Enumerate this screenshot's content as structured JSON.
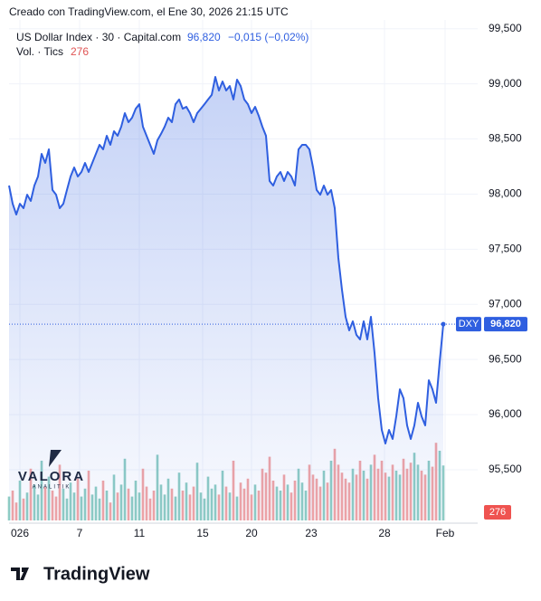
{
  "chart_data": {
    "type": "line",
    "caption": "Creado con TradingView.com, el Ene 30, 2026 21:15 UTC",
    "title": "US Dollar Index · 30 · Capital.com",
    "change_label": "−0,015 (−0,02%)",
    "volume_title": "Vol. · Tics",
    "symbol": "DXY",
    "watermark": "VALORA",
    "watermark_sub": "ANALITIK",
    "brand": "TradingView",
    "price_label": {
      "value": 96820,
      "label": "96,820"
    },
    "xlim": [
      0,
      121
    ],
    "xticks": [
      {
        "value": 3,
        "label": "026"
      },
      {
        "value": 19.5,
        "label": "7"
      },
      {
        "value": 36,
        "label": "11"
      },
      {
        "value": 53.5,
        "label": "15"
      },
      {
        "value": 67,
        "label": "20"
      },
      {
        "value": 83.5,
        "label": "23"
      },
      {
        "value": 103.75,
        "label": "28"
      },
      {
        "value": 120.5,
        "label": "Feb"
      }
    ],
    "ylim": [
      95040,
      99580
    ],
    "yticks": [
      {
        "value": 95500,
        "label": "95,500"
      },
      {
        "value": 96000,
        "label": "96,000"
      },
      {
        "value": 96500,
        "label": "96,500"
      },
      {
        "value": 97000,
        "label": "97,000"
      },
      {
        "value": 97500,
        "label": "97,500"
      },
      {
        "value": 98000,
        "label": "98,000"
      },
      {
        "value": 98500,
        "label": "98,500"
      },
      {
        "value": 99000,
        "label": "99,000"
      },
      {
        "value": 99500,
        "label": "99,500"
      }
    ],
    "grid": true,
    "series": [
      {
        "name": "US Dollar Index",
        "color": "#2f5fe0",
        "values": [
          98078,
          97913,
          97815,
          97913,
          97872,
          97995,
          97938,
          98078,
          98160,
          98365,
          98283,
          98406,
          98037,
          97995,
          97872,
          97913,
          98037,
          98160,
          98242,
          98160,
          98201,
          98283,
          98201,
          98283,
          98365,
          98447,
          98406,
          98529,
          98447,
          98570,
          98529,
          98611,
          98734,
          98652,
          98693,
          98775,
          98816,
          98611,
          98529,
          98447,
          98365,
          98488,
          98546,
          98611,
          98693,
          98652,
          98816,
          98858,
          98775,
          98792,
          98734,
          98652,
          98734,
          98775,
          98816,
          98858,
          98899,
          99063,
          98940,
          99022,
          98940,
          98981,
          98858,
          99038,
          98981,
          98858,
          98816,
          98734,
          98792,
          98710,
          98611,
          98529,
          98119,
          98078,
          98160,
          98201,
          98119,
          98201,
          98160,
          98078,
          98406,
          98447,
          98447,
          98406,
          98242,
          98037,
          97995,
          98078,
          97995,
          98037,
          97872,
          97421,
          97133,
          96887,
          96764,
          96846,
          96723,
          96682,
          96846,
          96682,
          96887,
          96559,
          96148,
          95861,
          95738,
          95861,
          95779,
          95984,
          96230,
          96148,
          95902,
          95779,
          95902,
          96107,
          95984,
          95902,
          96312,
          96230,
          96107,
          96477,
          96820
        ]
      },
      {
        "name": "Vol.",
        "values": [
          120,
          150,
          90,
          200,
          110,
          140,
          260,
          180,
          130,
          300,
          170,
          220,
          150,
          120,
          280,
          160,
          110,
          190,
          140,
          210,
          120,
          160,
          250,
          130,
          170,
          110,
          200,
          150,
          90,
          230,
          140,
          180,
          310,
          160,
          120,
          200,
          140,
          260,
          170,
          110,
          150,
          330,
          180,
          130,
          210,
          160,
          120,
          240,
          150,
          190,
          130,
          170,
          290,
          140,
          110,
          220,
          160,
          180,
          130,
          250,
          170,
          140,
          300,
          120,
          190,
          160,
          210,
          130,
          180,
          150,
          260,
          240,
          320,
          200,
          170,
          150,
          230,
          180,
          140,
          200,
          260,
          190,
          150,
          280,
          230,
          210,
          170,
          250,
          190,
          300,
          360,
          280,
          240,
          210,
          190,
          260,
          230,
          300,
          250,
          210,
          280,
          330,
          260,
          300,
          240,
          220,
          280,
          250,
          230,
          310,
          260,
          290,
          340,
          280,
          250,
          230,
          300,
          270,
          390,
          350,
          276
        ]
      }
    ]
  }
}
